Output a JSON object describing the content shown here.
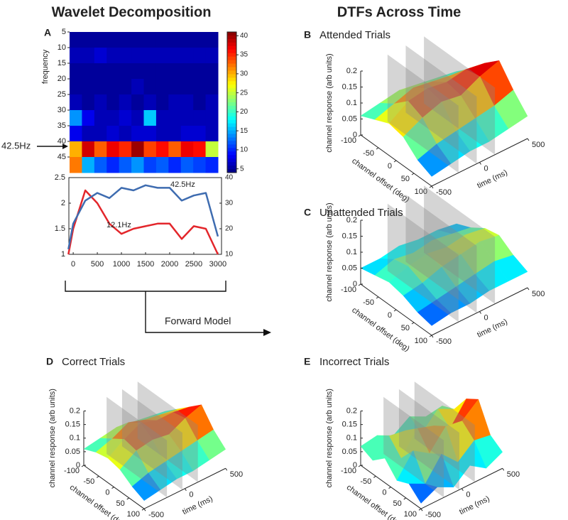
{
  "headings": [
    "Wavelet Decomposition",
    "DTFs Across Time"
  ],
  "annotations": {
    "marker": "42.5Hz",
    "arrow": "Forward Model"
  },
  "chart_data": [
    {
      "type": "heatmap",
      "panel": "A",
      "ylabel": "frequency",
      "y": [
        7.5,
        12.5,
        17.5,
        22.5,
        27.5,
        32.5,
        37.5,
        42.5,
        47.5
      ],
      "ylim": [
        5,
        50
      ],
      "yticks": [
        5,
        10,
        15,
        20,
        25,
        30,
        35,
        40,
        45
      ],
      "values": [
        [
          5,
          5,
          5,
          5,
          5,
          5,
          5,
          5,
          5,
          5,
          5,
          5
        ],
        [
          6,
          6,
          7,
          6,
          6,
          6,
          6,
          6,
          6,
          6,
          6,
          6
        ],
        [
          5,
          5,
          5,
          5,
          5,
          5,
          5,
          5,
          5,
          5,
          5,
          5
        ],
        [
          5,
          5,
          5,
          5,
          5,
          6,
          5,
          5,
          5,
          5,
          5,
          5
        ],
        [
          6,
          5,
          6,
          5,
          6,
          5,
          6,
          5,
          6,
          6,
          5,
          6
        ],
        [
          14,
          8,
          6,
          6,
          7,
          6,
          16,
          6,
          6,
          6,
          6,
          6
        ],
        [
          8,
          6,
          6,
          7,
          6,
          7,
          7,
          6,
          6,
          7,
          7,
          6
        ],
        [
          30,
          38,
          33,
          37,
          35,
          40,
          34,
          36,
          33,
          37,
          36,
          25
        ],
        [
          32,
          15,
          12,
          10,
          12,
          14,
          11,
          12,
          10,
          12,
          11,
          10
        ]
      ],
      "clim": [
        4,
        41
      ],
      "cticks": [
        5,
        10,
        15,
        20,
        25,
        30,
        35,
        40
      ]
    },
    {
      "type": "line",
      "x": [
        -100,
        0,
        250,
        500,
        750,
        1000,
        1250,
        1500,
        1750,
        2000,
        2250,
        2500,
        2750,
        3000
      ],
      "xlim": [
        -90,
        3075
      ],
      "xticks": [
        0,
        500,
        1000,
        1500,
        2000,
        2500,
        3000
      ],
      "ylim": [
        1,
        2.5
      ],
      "yticks": [
        1,
        1.5,
        2,
        2.5
      ],
      "y2lim": [
        10,
        40
      ],
      "y2ticks": [
        10,
        20,
        30,
        40
      ],
      "series": [
        {
          "name": "12.1Hz",
          "color": "#e3262b",
          "values": [
            1.0,
            1.5,
            2.25,
            2.0,
            1.6,
            1.4,
            1.5,
            1.55,
            1.6,
            1.6,
            1.3,
            1.55,
            1.5,
            1.0
          ]
        },
        {
          "name": "42.5Hz",
          "color": "#3e6cb0",
          "axis": "y2",
          "values": [
            12,
            22,
            31,
            34,
            32,
            36,
            35,
            37,
            36,
            36,
            31,
            33,
            34,
            17
          ]
        }
      ]
    },
    {
      "type": "surface",
      "panel": "B",
      "title": "Attended Trials",
      "xlabel": "channel offset (deg)",
      "ylabel": "time (ms)",
      "zlabel": "channel response (arb units)",
      "x": [
        -100,
        -60,
        -20,
        20,
        60,
        100
      ],
      "y": [
        -500,
        -300,
        -100,
        100,
        300,
        500
      ],
      "xlim": [
        -100,
        100
      ],
      "ylim": [
        -500,
        500
      ],
      "zlim": [
        0,
        0.2
      ],
      "xticks": [
        -100,
        -50,
        0,
        50,
        100
      ],
      "yticks": [
        -500,
        0,
        500
      ],
      "zticks": [
        0,
        0.05,
        0.1,
        0.15,
        0.2
      ],
      "values": [
        [
          0.06,
          0.08,
          0.1,
          0.09,
          0.05,
          0.03
        ],
        [
          0.07,
          0.1,
          0.14,
          0.12,
          0.07,
          0.04
        ],
        [
          0.08,
          0.12,
          0.15,
          0.14,
          0.08,
          0.05
        ],
        [
          0.07,
          0.11,
          0.14,
          0.13,
          0.09,
          0.05
        ],
        [
          0.06,
          0.1,
          0.15,
          0.16,
          0.1,
          0.06
        ],
        [
          0.05,
          0.09,
          0.14,
          0.18,
          0.12,
          0.07
        ]
      ]
    },
    {
      "type": "surface",
      "panel": "C",
      "title": "Unattended Trials",
      "xlabel": "channel offset (deg)",
      "ylabel": "time (ms)",
      "zlabel": "channel response (arb units)",
      "x": [
        -100,
        -60,
        -20,
        20,
        60,
        100
      ],
      "y": [
        -500,
        -300,
        -100,
        100,
        300,
        500
      ],
      "xlim": [
        -100,
        100
      ],
      "ylim": [
        -500,
        500
      ],
      "zlim": [
        0,
        0.2
      ],
      "xticks": [
        -100,
        -50,
        0,
        50,
        100
      ],
      "yticks": [
        -500,
        0,
        500
      ],
      "zticks": [
        0,
        0.05,
        0.1,
        0.15,
        0.2
      ],
      "values": [
        [
          0.05,
          0.06,
          0.07,
          0.06,
          0.04,
          0.03
        ],
        [
          0.05,
          0.08,
          0.09,
          0.07,
          0.05,
          0.04
        ],
        [
          0.06,
          0.07,
          0.1,
          0.09,
          0.06,
          0.04
        ],
        [
          0.05,
          0.08,
          0.09,
          0.1,
          0.07,
          0.05
        ],
        [
          0.05,
          0.07,
          0.1,
          0.11,
          0.08,
          0.05
        ],
        [
          0.04,
          0.06,
          0.09,
          0.1,
          0.07,
          0.05
        ]
      ]
    },
    {
      "type": "surface",
      "panel": "D",
      "title": "Correct Trials",
      "xlabel": "channel offset (deg)",
      "ylabel": "time (ms)",
      "zlabel": "channel response (arb units)",
      "x": [
        -100,
        -60,
        -20,
        20,
        60,
        100
      ],
      "y": [
        -500,
        -300,
        -100,
        100,
        300,
        500
      ],
      "xlim": [
        -100,
        100
      ],
      "ylim": [
        -500,
        500
      ],
      "zlim": [
        0,
        0.2
      ],
      "xticks": [
        -100,
        -50,
        0,
        50,
        100
      ],
      "yticks": [
        -500,
        0,
        500
      ],
      "zticks": [
        0,
        0.05,
        0.1,
        0.15,
        0.2
      ],
      "values": [
        [
          0.06,
          0.08,
          0.09,
          0.08,
          0.05,
          0.03
        ],
        [
          0.07,
          0.1,
          0.13,
          0.12,
          0.07,
          0.04
        ],
        [
          0.08,
          0.13,
          0.16,
          0.13,
          0.08,
          0.05
        ],
        [
          0.07,
          0.11,
          0.14,
          0.12,
          0.09,
          0.05
        ],
        [
          0.06,
          0.1,
          0.14,
          0.15,
          0.1,
          0.06
        ],
        [
          0.05,
          0.09,
          0.13,
          0.17,
          0.11,
          0.07
        ]
      ]
    },
    {
      "type": "surface",
      "panel": "E",
      "title": "Incorrect Trials",
      "xlabel": "channel offset (deg)",
      "ylabel": "time (ms)",
      "zlabel": "channel response (arb units)",
      "x": [
        -100,
        -60,
        -20,
        20,
        60,
        100
      ],
      "y": [
        -500,
        -300,
        -100,
        100,
        300,
        500
      ],
      "xlim": [
        -100,
        100
      ],
      "ylim": [
        -500,
        500
      ],
      "zlim": [
        0,
        0.2
      ],
      "xticks": [
        -100,
        -50,
        0,
        50,
        100
      ],
      "yticks": [
        -500,
        0,
        500
      ],
      "zticks": [
        0,
        0.05,
        0.1,
        0.15,
        0.2
      ],
      "values": [
        [
          0.07,
          0.05,
          0.09,
          0.04,
          0.06,
          0.02
        ],
        [
          0.08,
          0.11,
          0.06,
          0.12,
          0.03,
          0.05
        ],
        [
          0.05,
          0.1,
          0.14,
          0.08,
          0.11,
          0.02
        ],
        [
          0.09,
          0.06,
          0.12,
          0.15,
          0.05,
          0.07
        ],
        [
          0.06,
          0.12,
          0.08,
          0.14,
          0.1,
          0.03
        ],
        [
          0.07,
          0.09,
          0.16,
          0.19,
          0.09,
          0.06
        ]
      ]
    }
  ]
}
